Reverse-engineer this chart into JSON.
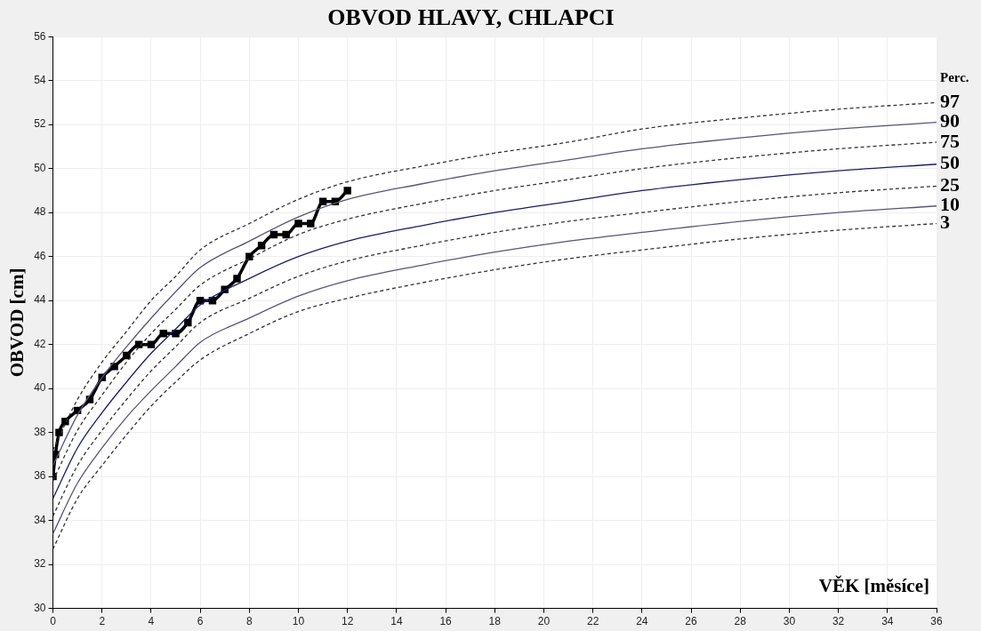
{
  "chart_data": {
    "type": "line",
    "title": "OBVOD HLAVY, CHLAPCI",
    "xlabel": "VĚK [měsíce]",
    "ylabel": "OBVOD [cm]",
    "legend_title": "Perc.",
    "xlim": [
      0,
      36
    ],
    "xticks": [
      0,
      2,
      4,
      6,
      8,
      10,
      12,
      14,
      16,
      18,
      20,
      22,
      24,
      26,
      28,
      30,
      32,
      34,
      36
    ],
    "ylim": [
      30,
      56
    ],
    "yticks": [
      30,
      32,
      34,
      36,
      38,
      40,
      42,
      44,
      46,
      48,
      50,
      52,
      54,
      56
    ],
    "grid": true,
    "legend": false,
    "x": [
      0,
      1,
      2,
      3,
      4,
      5,
      6,
      8,
      10,
      12,
      15,
      18,
      21,
      24,
      28,
      32,
      36
    ],
    "series": [
      {
        "name": "97",
        "color": "#333333",
        "line_style": "dashed",
        "marker": "none",
        "values": [
          37.2,
          39.5,
          41.2,
          42.6,
          44.0,
          45.1,
          46.3,
          47.5,
          48.6,
          49.4,
          50.1,
          50.7,
          51.2,
          51.8,
          52.3,
          52.7,
          53.0
        ]
      },
      {
        "name": "90",
        "color": "#55557a",
        "line_style": "solid",
        "marker": "none",
        "values": [
          36.5,
          38.8,
          40.5,
          41.9,
          43.2,
          44.4,
          45.5,
          46.7,
          47.8,
          48.6,
          49.3,
          49.9,
          50.4,
          50.9,
          51.4,
          51.8,
          52.1
        ]
      },
      {
        "name": "75",
        "color": "#333333",
        "line_style": "dashed",
        "marker": "none",
        "values": [
          35.8,
          38.1,
          39.7,
          41.2,
          42.5,
          43.6,
          44.7,
          45.9,
          47.0,
          47.7,
          48.4,
          49.0,
          49.5,
          50.0,
          50.5,
          50.9,
          51.2
        ]
      },
      {
        "name": "50",
        "color": "#1a1a7a",
        "line_style": "solid",
        "marker": "none",
        "values": [
          35.0,
          37.3,
          38.9,
          40.3,
          41.6,
          42.7,
          43.8,
          45.0,
          46.0,
          46.7,
          47.4,
          48.0,
          48.5,
          49.0,
          49.5,
          49.9,
          50.2
        ]
      },
      {
        "name": "25",
        "color": "#333333",
        "line_style": "dashed",
        "marker": "none",
        "values": [
          34.2,
          36.5,
          38.1,
          39.5,
          40.8,
          41.9,
          43.0,
          44.1,
          45.1,
          45.8,
          46.5,
          47.1,
          47.6,
          48.0,
          48.5,
          48.9,
          49.2
        ]
      },
      {
        "name": "10",
        "color": "#55557a",
        "line_style": "solid",
        "marker": "none",
        "values": [
          33.4,
          35.7,
          37.3,
          38.7,
          39.9,
          41.0,
          42.1,
          43.2,
          44.2,
          44.9,
          45.6,
          46.2,
          46.7,
          47.1,
          47.6,
          48.0,
          48.3
        ]
      },
      {
        "name": "3",
        "color": "#333333",
        "line_style": "dashed",
        "marker": "none",
        "values": [
          32.7,
          35.0,
          36.5,
          37.9,
          39.2,
          40.3,
          41.3,
          42.5,
          43.5,
          44.1,
          44.8,
          45.4,
          45.9,
          46.3,
          46.8,
          47.2,
          47.5
        ]
      },
      {
        "color": "#000000",
        "line_style": "solid",
        "marker": "square",
        "x": [
          0,
          0.1,
          0.25,
          0.5,
          1,
          1.5,
          2,
          2.5,
          3,
          3.5,
          4,
          4.5,
          5,
          5.5,
          6,
          6.5,
          7,
          7.5,
          8,
          8.5,
          9,
          9.5,
          10,
          10.5,
          11,
          11.5,
          12
        ],
        "values": [
          36,
          37,
          38,
          38.5,
          39,
          39.5,
          40.5,
          41,
          41.5,
          42,
          42,
          42.5,
          42.5,
          43,
          44,
          44,
          44.5,
          45,
          46,
          46.5,
          47,
          47,
          47.5,
          47.5,
          48.5,
          48.5,
          49
        ]
      }
    ]
  }
}
